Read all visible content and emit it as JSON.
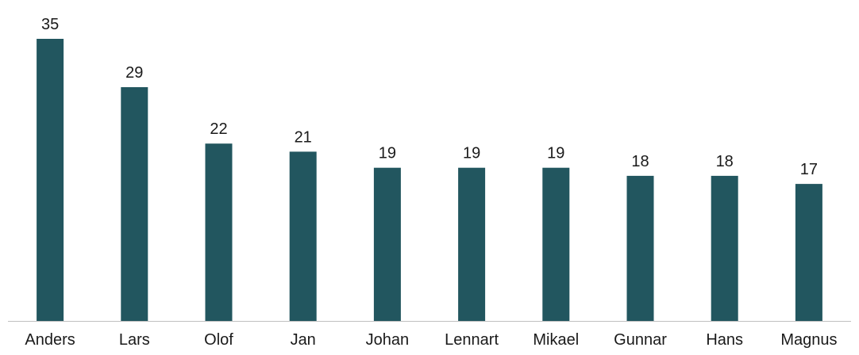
{
  "chart_data": {
    "type": "bar",
    "title": "",
    "xlabel": "",
    "ylabel": "",
    "categories": [
      "Anders",
      "Lars",
      "Olof",
      "Jan",
      "Johan",
      "Lennart",
      "Mikael",
      "Gunnar",
      "Hans",
      "Magnus"
    ],
    "values": [
      35,
      29,
      22,
      21,
      19,
      19,
      19,
      18,
      18,
      17
    ],
    "ylim": [
      0,
      35
    ],
    "grid": false,
    "legend": "none",
    "bar_color": "#22565f",
    "axis_color": "#bfbfbf",
    "data_labels": true
  }
}
